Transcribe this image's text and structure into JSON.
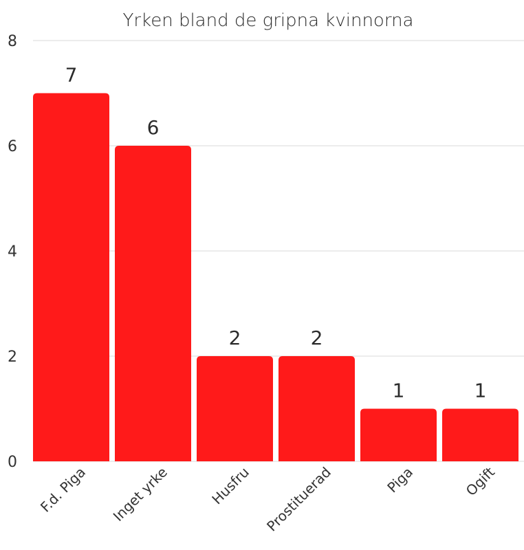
{
  "chart_data": {
    "type": "bar",
    "title": "Yrken bland de gripna kvinnorna",
    "xlabel": "",
    "ylabel": "",
    "categories": [
      "F.d. Piga",
      "Inget yrke",
      "Husfru",
      "Prostituerad",
      "Piga",
      "Ogift"
    ],
    "values": [
      7,
      6,
      2,
      2,
      1,
      1
    ],
    "ylim": [
      0,
      8
    ],
    "yticks": [
      0,
      2,
      4,
      6,
      8
    ],
    "grid": true,
    "data_labels": true,
    "legend": "none",
    "bar_color": "#ff1a1a"
  }
}
